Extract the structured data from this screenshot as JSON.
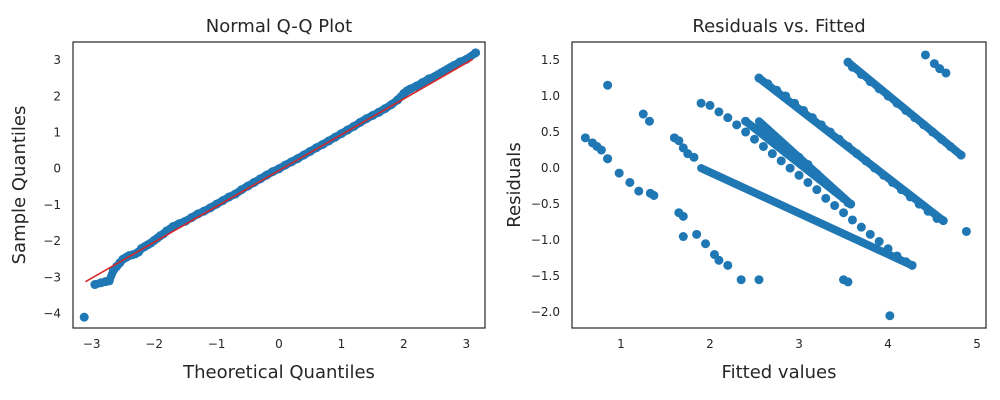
{
  "chart_data": [
    {
      "type": "scatter",
      "title": "Normal Q-Q Plot",
      "xlabel": "Theoretical Quantiles",
      "ylabel": "Sample Quantiles",
      "xlim": [
        -3.3,
        3.3
      ],
      "ylim": [
        -4.4,
        3.5
      ],
      "xticks": [
        -3,
        -2,
        -1,
        0,
        1,
        2,
        3
      ],
      "yticks": [
        -4,
        -3,
        -2,
        -1,
        0,
        1,
        2,
        3
      ],
      "grid": false,
      "point_color": "#1f77b4",
      "reference_line": {
        "color": "#d62728",
        "x": [
          -3.1,
          3.1
        ],
        "y": [
          -3.12,
          3.02
        ]
      },
      "series": [
        {
          "x": [
            -3.12,
            -2.95,
            -2.85,
            -2.78,
            -2.72,
            -2.65,
            -2.6,
            -2.55,
            -2.5,
            -2.45,
            -2.4,
            -2.35,
            -2.3,
            -2.25,
            -2.2,
            -2.15,
            -2.1,
            -2.05,
            -2.0,
            -1.95,
            -1.9,
            -1.85,
            -1.8,
            -1.7,
            -1.6,
            -1.5,
            -1.4,
            -1.3,
            -1.2,
            -1.1,
            -1.0,
            -0.9,
            -0.8,
            -0.7,
            -0.6,
            -0.5,
            -0.4,
            -0.3,
            -0.2,
            -0.1,
            0.0,
            0.1,
            0.2,
            0.3,
            0.4,
            0.5,
            0.6,
            0.7,
            0.8,
            0.9,
            1.0,
            1.1,
            1.2,
            1.3,
            1.4,
            1.5,
            1.6,
            1.7,
            1.8,
            1.9,
            2.0,
            2.05,
            2.1,
            2.2,
            2.3,
            2.4,
            2.5,
            2.55,
            2.6,
            2.65,
            2.7,
            2.75,
            2.8,
            2.9,
            3.0,
            3.15
          ],
          "y": [
            -4.1,
            -3.2,
            -3.15,
            -3.12,
            -3.1,
            -2.8,
            -2.7,
            -2.6,
            -2.5,
            -2.45,
            -2.4,
            -2.38,
            -2.35,
            -2.3,
            -2.2,
            -2.15,
            -2.1,
            -2.05,
            -1.98,
            -1.92,
            -1.85,
            -1.8,
            -1.72,
            -1.6,
            -1.52,
            -1.45,
            -1.35,
            -1.25,
            -1.17,
            -1.08,
            -0.98,
            -0.88,
            -0.78,
            -0.7,
            -0.58,
            -0.48,
            -0.38,
            -0.28,
            -0.18,
            -0.08,
            0.0,
            0.1,
            0.19,
            0.28,
            0.38,
            0.48,
            0.58,
            0.67,
            0.77,
            0.87,
            0.97,
            1.07,
            1.17,
            1.28,
            1.38,
            1.47,
            1.56,
            1.66,
            1.77,
            1.9,
            2.08,
            2.15,
            2.2,
            2.28,
            2.38,
            2.48,
            2.55,
            2.6,
            2.65,
            2.7,
            2.75,
            2.8,
            2.85,
            2.95,
            3.02,
            3.2
          ]
        }
      ]
    },
    {
      "type": "scatter",
      "title": "Residuals vs. Fitted",
      "xlabel": "Fitted values",
      "ylabel": "Residuals",
      "xlim": [
        0.45,
        5.1
      ],
      "ylim": [
        -2.22,
        1.75
      ],
      "xticks": [
        1,
        2,
        3,
        4,
        5
      ],
      "yticks": [
        -2.0,
        -1.5,
        -1.0,
        -0.5,
        0.0,
        0.5,
        1.0,
        1.5
      ],
      "ytick_labels": [
        "−2.0",
        "−1.5",
        "−1.0",
        "−0.5",
        "0.0",
        "0.5",
        "1.0",
        "1.5"
      ],
      "grid": false,
      "point_color": "#1f77b4",
      "series": [
        {
          "x": [
            0.6,
            0.68,
            0.73,
            0.78,
            0.85,
            0.98,
            1.1,
            1.2,
            1.33,
            1.37,
            0.85,
            1.25,
            1.32,
            1.6,
            1.65,
            1.7,
            1.75,
            1.82,
            1.65,
            1.7,
            1.85,
            1.95,
            2.05,
            2.1,
            2.2,
            2.35,
            2.4,
            2.55,
            2.65,
            2.8,
            2.9,
            3.0,
            3.1,
            3.2,
            3.3,
            3.4,
            3.5,
            3.55,
            3.58,
            1.9,
            2.0,
            2.1,
            2.2,
            2.3,
            2.4,
            2.5,
            2.6,
            2.7,
            2.8,
            2.9,
            3.0,
            3.1,
            3.2,
            3.3,
            3.4,
            3.5,
            3.6,
            3.7,
            3.8,
            3.9,
            4.0,
            4.1,
            4.2,
            4.27,
            2.55,
            2.65,
            2.75,
            2.85,
            2.95,
            3.05,
            3.15,
            3.25,
            3.35,
            3.45,
            3.55,
            3.65,
            3.75,
            3.85,
            3.95,
            4.05,
            4.15,
            4.25,
            4.35,
            4.45,
            4.55,
            4.62,
            3.55,
            3.6,
            3.7,
            3.8,
            3.9,
            4.0,
            4.1,
            4.2,
            4.3,
            4.4,
            4.5,
            4.6,
            4.7,
            4.82,
            4.88,
            4.02,
            4.42,
            4.52,
            4.58,
            4.65
          ],
          "y": [
            0.42,
            0.35,
            0.3,
            0.25,
            0.13,
            -0.07,
            -0.2,
            -0.32,
            -0.35,
            -0.38,
            1.15,
            0.75,
            0.65,
            0.42,
            0.38,
            0.28,
            0.2,
            0.15,
            -0.62,
            -0.67,
            -0.92,
            -1.05,
            -1.2,
            -1.28,
            -1.35,
            -1.55,
            0.65,
            0.58,
            0.48,
            0.35,
            0.25,
            0.15,
            0.05,
            -0.08,
            -0.2,
            -0.32,
            -0.42,
            -0.48,
            -0.5,
            0.9,
            0.87,
            0.78,
            0.7,
            0.6,
            0.5,
            0.4,
            0.3,
            0.2,
            0.1,
            0.0,
            -0.1,
            -0.2,
            -0.3,
            -0.42,
            -0.52,
            -0.62,
            -0.72,
            -0.82,
            -0.92,
            -1.02,
            -1.12,
            -1.22,
            -1.3,
            -1.35,
            1.25,
            1.17,
            1.08,
            1.0,
            0.9,
            0.8,
            0.7,
            0.6,
            0.5,
            0.4,
            0.3,
            0.2,
            0.1,
            0.0,
            -0.1,
            -0.2,
            -0.3,
            -0.4,
            -0.5,
            -0.6,
            -0.7,
            -0.73,
            1.47,
            1.4,
            1.3,
            1.2,
            1.1,
            1.0,
            0.9,
            0.8,
            0.7,
            0.6,
            0.5,
            0.4,
            0.3,
            0.18,
            -0.88,
            -2.05,
            1.57,
            1.45,
            1.38,
            1.32
          ],
          "extra_x": [
            0.85,
            1.7,
            2.55,
            3.5,
            3.55
          ],
          "extra_y": [
            0.13,
            -0.95,
            -1.55,
            -1.55,
            -1.58
          ]
        }
      ]
    }
  ]
}
